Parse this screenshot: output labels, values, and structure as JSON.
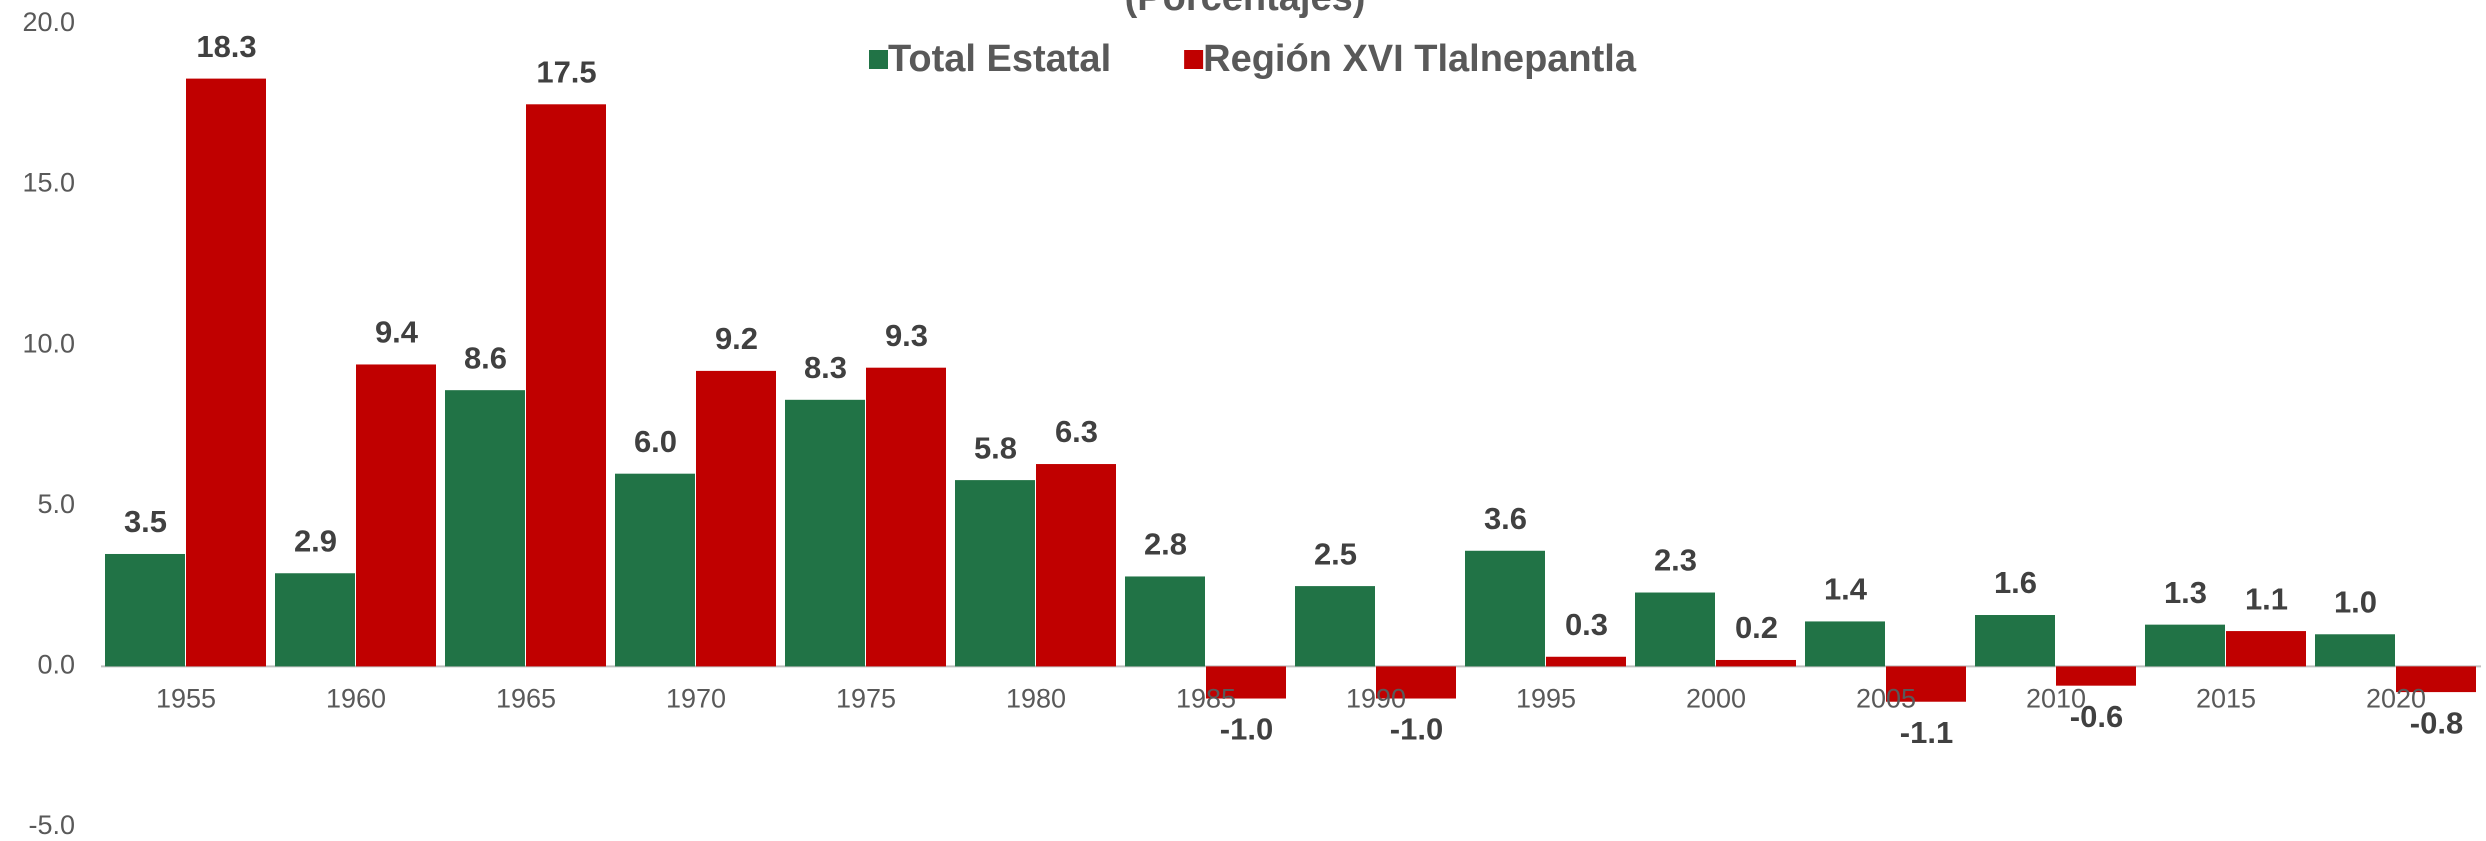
{
  "chart_data": {
    "type": "bar",
    "subtitle": "(Porcentajes)",
    "categories": [
      "1955",
      "1960",
      "1965",
      "1970",
      "1975",
      "1980",
      "1985",
      "1990",
      "1995",
      "2000",
      "2005",
      "2010",
      "2015",
      "2020"
    ],
    "series": [
      {
        "name": "Total Estatal",
        "color": "#217346",
        "values": [
          3.5,
          2.9,
          8.6,
          6.0,
          8.3,
          5.8,
          2.8,
          2.5,
          3.6,
          2.3,
          1.4,
          1.6,
          1.3,
          1.0
        ],
        "value_labels": [
          "3.5",
          "2.9",
          "8.6",
          "6.0",
          "8.3",
          "5.8",
          "2.8",
          "2.5",
          "3.6",
          "2.3",
          "1.4",
          "1.6",
          "1.3",
          "1.0"
        ]
      },
      {
        "name": "Región XVI Tlalnepantla",
        "color": "#c00000",
        "values": [
          18.3,
          9.4,
          17.5,
          9.2,
          9.3,
          6.3,
          -1.0,
          -1.0,
          0.3,
          0.2,
          -1.1,
          -0.6,
          1.1,
          -0.8
        ],
        "value_labels": [
          "18.3",
          "9.4",
          "17.5",
          "9.2",
          "9.3",
          "6.3",
          "-1.0",
          "-1.0",
          "0.3",
          "0.2",
          "-1.1",
          "-0.6",
          "1.1",
          "-0.8"
        ]
      }
    ],
    "ylim": [
      -5,
      20
    ],
    "yticks": [
      {
        "value": -5,
        "label": "-5.0"
      },
      {
        "value": 0,
        "label": "0.0"
      },
      {
        "value": 5,
        "label": "5.0"
      },
      {
        "value": 10,
        "label": "10.0"
      },
      {
        "value": 15,
        "label": "15.0"
      },
      {
        "value": 20,
        "label": "20.0"
      }
    ],
    "legend": "top",
    "grid": false
  }
}
